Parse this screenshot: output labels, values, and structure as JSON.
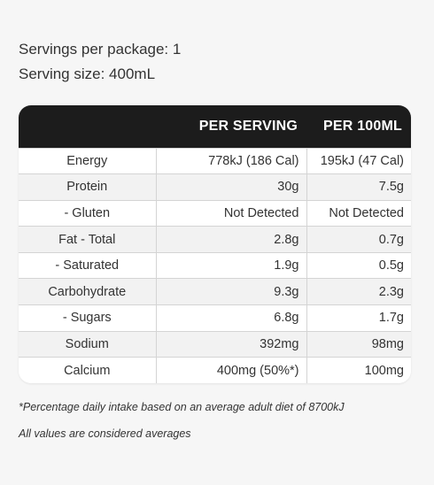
{
  "serving": {
    "per_package": "Servings per package: 1",
    "size": "Serving size: 400mL"
  },
  "table": {
    "headers": [
      "",
      "PER SERVING",
      "PER 100ML"
    ],
    "rows": [
      {
        "nutrient": "Energy",
        "per_serving": "778kJ (186 Cal)",
        "per_100ml": "195kJ (47 Cal)"
      },
      {
        "nutrient": "Protein",
        "per_serving": "30g",
        "per_100ml": "7.5g"
      },
      {
        "nutrient": "- Gluten",
        "per_serving": "Not Detected",
        "per_100ml": "Not Detected"
      },
      {
        "nutrient": "Fat - Total",
        "per_serving": "2.8g",
        "per_100ml": "0.7g"
      },
      {
        "nutrient": "- Saturated",
        "per_serving": "1.9g",
        "per_100ml": "0.5g"
      },
      {
        "nutrient": "Carbohydrate",
        "per_serving": "9.3g",
        "per_100ml": "2.3g"
      },
      {
        "nutrient": "- Sugars",
        "per_serving": "6.8g",
        "per_100ml": "1.7g"
      },
      {
        "nutrient": "Sodium",
        "per_serving": "392mg",
        "per_100ml": "98mg"
      },
      {
        "nutrient": "Calcium",
        "per_serving": "400mg (50%*)",
        "per_100ml": "100mg"
      }
    ]
  },
  "notes": {
    "daily_intake": "*Percentage daily intake based on an average adult diet of 8700kJ",
    "averages": "All values are considered averages"
  }
}
